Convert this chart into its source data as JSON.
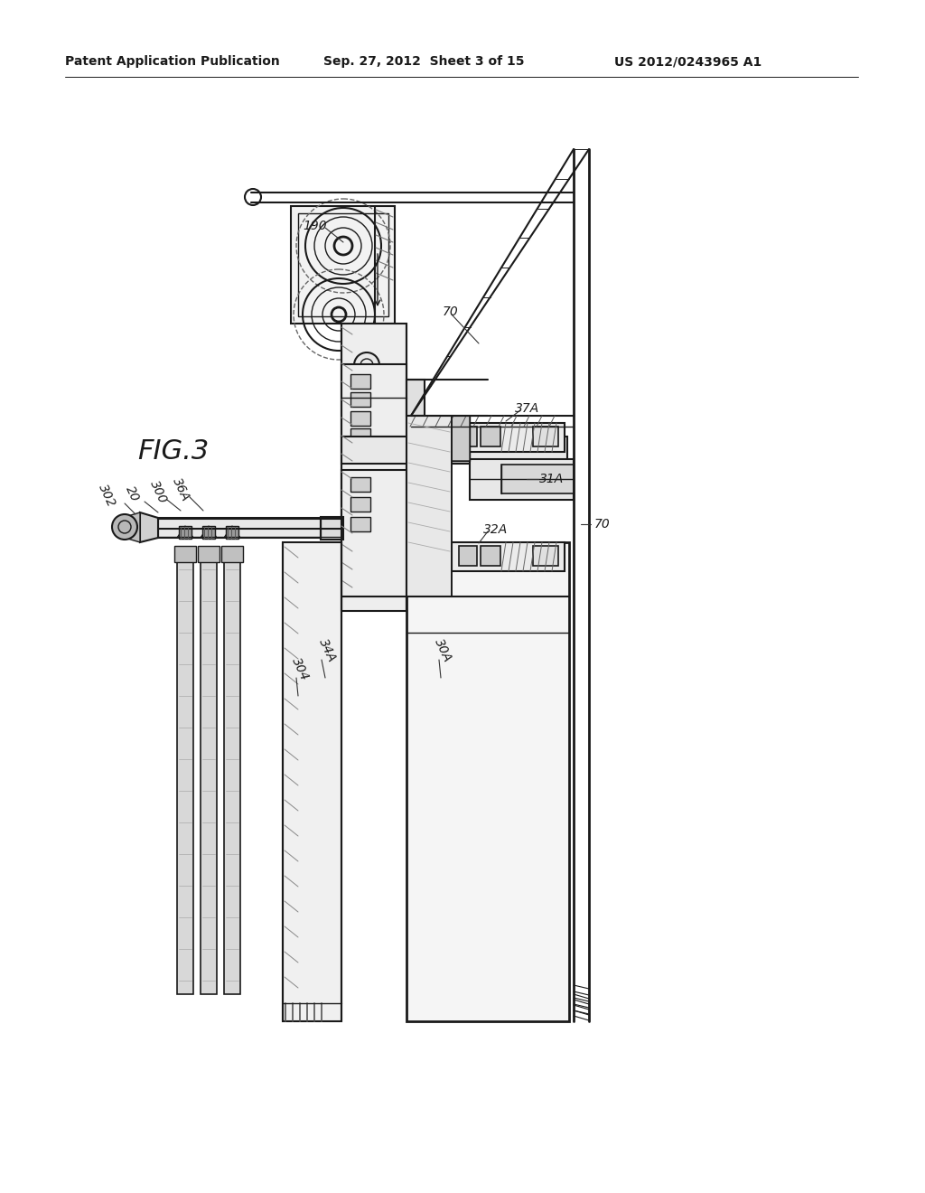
{
  "bg_color": "#ffffff",
  "header_text1": "Patent Application Publication",
  "header_text2": "Sep. 27, 2012  Sheet 3 of 15",
  "header_text3": "US 2012/0243965 A1",
  "fig_label": "FIG.3",
  "line_color": "#1a1a1a",
  "gray1": "#e8e8e8",
  "gray2": "#d0d0d0",
  "gray3": "#b8b8b8"
}
